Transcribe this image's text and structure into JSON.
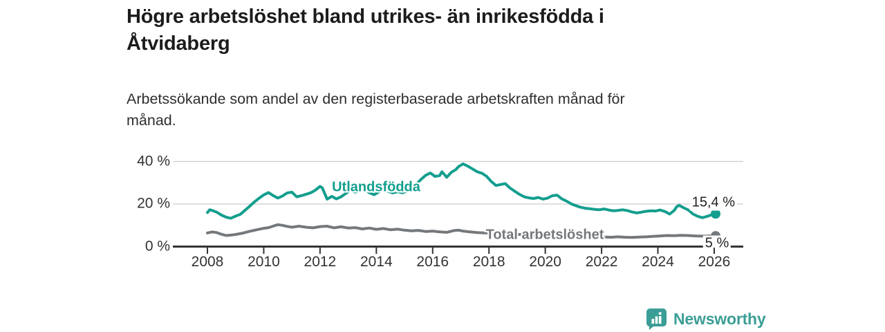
{
  "page": {
    "title": "Högre arbetslöshet bland utrikes- än inrikesfödda i\nÅtvidaberg",
    "subtitle": "Arbetssökande som andel av den registerbaserade arbetskraften månad för\nmånad."
  },
  "branding": {
    "logo_text": "Newsworthy",
    "logo_icon": "bar-chart-speech-bubble-icon",
    "logo_color": "#3b9e96"
  },
  "colors": {
    "foreign_born_line": "#139e8e",
    "total_line": "#75787b",
    "grid": "#cccccc",
    "axis": "#333333",
    "value_label_text": "#222222"
  },
  "chart_data": {
    "type": "line",
    "title": "Högre arbetslöshet bland utrikes- än inrikesfödda i Åtvidaberg",
    "subtitle": "Arbetssökande som andel av den registerbaserade arbetskraften månad för månad.",
    "grid": "horizontal-only",
    "legend_position": "inline-labels",
    "x": {
      "tick_years": [
        2008,
        2010,
        2012,
        2014,
        2016,
        2018,
        2020,
        2022,
        2024,
        2026
      ],
      "range": [
        2006.8,
        2027.0
      ]
    },
    "y": {
      "unit": "%",
      "range": [
        0,
        44
      ],
      "ticks": [
        {
          "value": 0,
          "label": "0 %"
        },
        {
          "value": 20,
          "label": "20 %"
        },
        {
          "value": 40,
          "label": "40 %"
        }
      ]
    },
    "series": [
      {
        "name": "Utlandsfödda",
        "color": "#139e8e",
        "end_label": "15,4 %",
        "end_value": 15.4,
        "points": [
          [
            2008.0,
            16.0
          ],
          [
            2008.08,
            17.3
          ],
          [
            2008.17,
            17.0
          ],
          [
            2008.33,
            16.2
          ],
          [
            2008.5,
            14.8
          ],
          [
            2008.67,
            13.8
          ],
          [
            2008.83,
            13.3
          ],
          [
            2009.0,
            14.3
          ],
          [
            2009.17,
            15.2
          ],
          [
            2009.33,
            17.0
          ],
          [
            2009.5,
            19.0
          ],
          [
            2009.67,
            21.0
          ],
          [
            2009.83,
            22.7
          ],
          [
            2010.0,
            24.3
          ],
          [
            2010.17,
            25.4
          ],
          [
            2010.33,
            24.0
          ],
          [
            2010.5,
            22.8
          ],
          [
            2010.67,
            23.8
          ],
          [
            2010.83,
            25.2
          ],
          [
            2011.0,
            25.6
          ],
          [
            2011.17,
            23.4
          ],
          [
            2011.33,
            23.9
          ],
          [
            2011.5,
            24.6
          ],
          [
            2011.67,
            25.3
          ],
          [
            2011.83,
            26.5
          ],
          [
            2012.0,
            28.3
          ],
          [
            2012.08,
            27.6
          ],
          [
            2012.25,
            22.3
          ],
          [
            2012.42,
            23.6
          ],
          [
            2012.58,
            22.4
          ],
          [
            2012.75,
            23.4
          ],
          [
            2012.92,
            25.0
          ],
          [
            2013.08,
            26.4
          ],
          [
            2013.25,
            25.6
          ],
          [
            2013.42,
            26.3
          ],
          [
            2013.58,
            27.0
          ],
          [
            2013.75,
            25.3
          ],
          [
            2013.92,
            24.4
          ],
          [
            2014.08,
            25.6
          ],
          [
            2014.25,
            26.9
          ],
          [
            2014.42,
            26.0
          ],
          [
            2014.58,
            25.2
          ],
          [
            2014.75,
            25.8
          ],
          [
            2014.92,
            25.3
          ],
          [
            2015.08,
            26.0
          ],
          [
            2015.25,
            27.3
          ],
          [
            2015.42,
            29.3
          ],
          [
            2015.58,
            31.5
          ],
          [
            2015.75,
            33.5
          ],
          [
            2015.92,
            34.6
          ],
          [
            2016.08,
            33.0
          ],
          [
            2016.25,
            33.4
          ],
          [
            2016.33,
            35.2
          ],
          [
            2016.5,
            32.6
          ],
          [
            2016.67,
            35.0
          ],
          [
            2016.83,
            36.3
          ],
          [
            2016.92,
            37.6
          ],
          [
            2017.08,
            38.9
          ],
          [
            2017.25,
            37.8
          ],
          [
            2017.42,
            36.5
          ],
          [
            2017.58,
            35.2
          ],
          [
            2017.75,
            34.5
          ],
          [
            2017.92,
            33.0
          ],
          [
            2018.08,
            30.6
          ],
          [
            2018.25,
            28.7
          ],
          [
            2018.42,
            29.2
          ],
          [
            2018.58,
            29.6
          ],
          [
            2018.75,
            27.5
          ],
          [
            2018.92,
            26.0
          ],
          [
            2019.08,
            24.6
          ],
          [
            2019.25,
            23.4
          ],
          [
            2019.42,
            22.9
          ],
          [
            2019.58,
            22.6
          ],
          [
            2019.75,
            23.1
          ],
          [
            2019.92,
            22.3
          ],
          [
            2020.08,
            22.8
          ],
          [
            2020.25,
            23.9
          ],
          [
            2020.42,
            24.2
          ],
          [
            2020.58,
            22.5
          ],
          [
            2020.75,
            21.4
          ],
          [
            2020.92,
            20.1
          ],
          [
            2021.08,
            19.3
          ],
          [
            2021.25,
            18.5
          ],
          [
            2021.42,
            18.0
          ],
          [
            2021.58,
            17.8
          ],
          [
            2021.75,
            17.5
          ],
          [
            2021.92,
            17.3
          ],
          [
            2022.08,
            17.7
          ],
          [
            2022.25,
            17.2
          ],
          [
            2022.42,
            16.8
          ],
          [
            2022.58,
            17.0
          ],
          [
            2022.75,
            17.3
          ],
          [
            2022.92,
            16.9
          ],
          [
            2023.08,
            16.3
          ],
          [
            2023.25,
            15.8
          ],
          [
            2023.42,
            16.2
          ],
          [
            2023.58,
            16.6
          ],
          [
            2023.75,
            16.8
          ],
          [
            2023.92,
            16.7
          ],
          [
            2024.08,
            17.2
          ],
          [
            2024.25,
            16.5
          ],
          [
            2024.42,
            15.3
          ],
          [
            2024.58,
            17.0
          ],
          [
            2024.67,
            18.8
          ],
          [
            2024.75,
            19.4
          ],
          [
            2024.92,
            18.2
          ],
          [
            2025.08,
            17.2
          ],
          [
            2025.25,
            15.3
          ],
          [
            2025.42,
            14.2
          ],
          [
            2025.58,
            13.6
          ],
          [
            2025.75,
            14.2
          ],
          [
            2025.92,
            15.0
          ],
          [
            2026.05,
            15.4
          ]
        ]
      },
      {
        "name": "Total arbetslöshet",
        "color": "#75787b",
        "end_label": "5 %",
        "end_value": 5.0,
        "points": [
          [
            2008.0,
            6.4
          ],
          [
            2008.17,
            6.9
          ],
          [
            2008.33,
            6.6
          ],
          [
            2008.5,
            5.8
          ],
          [
            2008.67,
            5.2
          ],
          [
            2008.83,
            5.4
          ],
          [
            2009.0,
            5.7
          ],
          [
            2009.25,
            6.3
          ],
          [
            2009.5,
            7.2
          ],
          [
            2009.75,
            7.9
          ],
          [
            2010.0,
            8.6
          ],
          [
            2010.17,
            8.9
          ],
          [
            2010.33,
            9.6
          ],
          [
            2010.5,
            10.3
          ],
          [
            2010.67,
            10.0
          ],
          [
            2010.83,
            9.5
          ],
          [
            2011.0,
            9.1
          ],
          [
            2011.25,
            9.6
          ],
          [
            2011.5,
            9.1
          ],
          [
            2011.75,
            8.8
          ],
          [
            2012.0,
            9.4
          ],
          [
            2012.25,
            9.6
          ],
          [
            2012.5,
            8.8
          ],
          [
            2012.75,
            9.3
          ],
          [
            2013.0,
            8.7
          ],
          [
            2013.25,
            8.9
          ],
          [
            2013.5,
            8.3
          ],
          [
            2013.75,
            8.7
          ],
          [
            2014.0,
            8.1
          ],
          [
            2014.25,
            8.5
          ],
          [
            2014.5,
            7.9
          ],
          [
            2014.75,
            8.2
          ],
          [
            2015.0,
            7.7
          ],
          [
            2015.25,
            7.4
          ],
          [
            2015.5,
            7.6
          ],
          [
            2015.75,
            7.1
          ],
          [
            2016.0,
            7.3
          ],
          [
            2016.25,
            6.9
          ],
          [
            2016.5,
            6.7
          ],
          [
            2016.75,
            7.5
          ],
          [
            2016.92,
            7.7
          ],
          [
            2017.08,
            7.3
          ],
          [
            2017.33,
            6.9
          ],
          [
            2017.58,
            6.6
          ],
          [
            2017.83,
            6.4
          ],
          [
            2018.08,
            6.3
          ],
          [
            2018.33,
            6.1
          ],
          [
            2018.58,
            6.0
          ],
          [
            2018.83,
            5.8
          ],
          [
            2019.08,
            5.7
          ],
          [
            2019.33,
            5.5
          ],
          [
            2019.58,
            5.4
          ],
          [
            2019.83,
            5.6
          ],
          [
            2020.08,
            5.8
          ],
          [
            2020.33,
            6.0
          ],
          [
            2020.58,
            5.9
          ],
          [
            2020.83,
            5.6
          ],
          [
            2021.08,
            5.2
          ],
          [
            2021.33,
            5.0
          ],
          [
            2021.58,
            4.8
          ],
          [
            2021.83,
            4.6
          ],
          [
            2022.08,
            4.5
          ],
          [
            2022.33,
            4.4
          ],
          [
            2022.58,
            4.6
          ],
          [
            2022.83,
            4.4
          ],
          [
            2023.08,
            4.3
          ],
          [
            2023.33,
            4.5
          ],
          [
            2023.58,
            4.6
          ],
          [
            2023.83,
            4.8
          ],
          [
            2024.08,
            5.0
          ],
          [
            2024.33,
            5.2
          ],
          [
            2024.58,
            5.1
          ],
          [
            2024.83,
            5.3
          ],
          [
            2025.08,
            5.2
          ],
          [
            2025.33,
            5.0
          ],
          [
            2025.58,
            4.9
          ],
          [
            2025.83,
            5.0
          ],
          [
            2026.05,
            5.0
          ]
        ]
      }
    ]
  }
}
